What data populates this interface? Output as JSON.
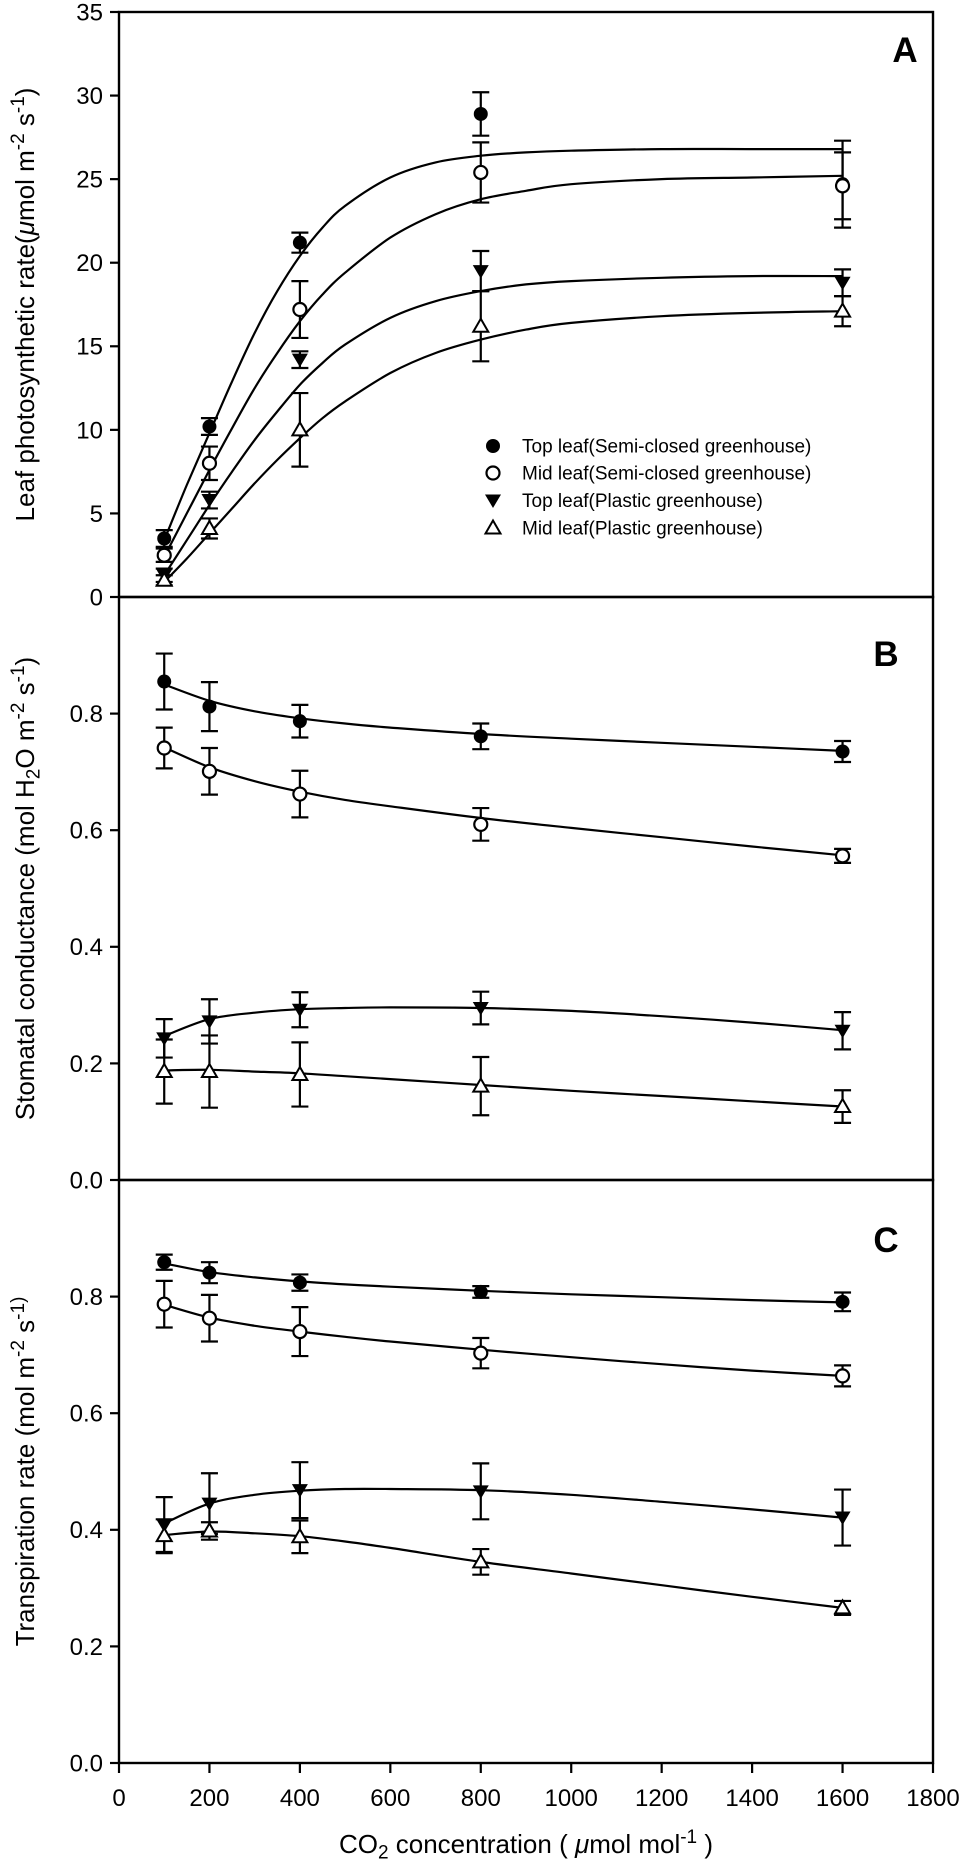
{
  "chart_data": {
    "type": "line",
    "background": "#ffffff",
    "ink_color": "#000000",
    "x": {
      "min": 0,
      "max": 1800,
      "tick_values": [
        0,
        200,
        400,
        600,
        800,
        1000,
        1200,
        1400,
        1600,
        1800
      ],
      "tick_labels": [
        "0",
        "200",
        "400",
        "600",
        "800",
        "1000",
        "1200",
        "1400",
        "1600",
        "1800"
      ],
      "label_parts": [
        {
          "t": "CO"
        },
        {
          "t": "2",
          "sub": true
        },
        {
          "t": " concentration ( "
        },
        {
          "t": "μ",
          "italic": true
        },
        {
          "t": "mol mol"
        },
        {
          "t": "-1",
          "sup": true
        },
        {
          "t": " )"
        }
      ]
    },
    "points_x": [
      100,
      200,
      400,
      800,
      1600
    ],
    "panels": [
      {
        "label": "A",
        "ylim": [
          0,
          35
        ],
        "ytick_values": [
          0,
          5,
          10,
          15,
          20,
          25,
          30,
          35
        ],
        "ytick_labels": [
          "0",
          "5",
          "10",
          "15",
          "20",
          "25",
          "30",
          "35"
        ],
        "ylabel_parts": [
          {
            "t": "Leaf photosynthetic rate("
          },
          {
            "t": "μ",
            "italic": true
          },
          {
            "t": "mol m"
          },
          {
            "t": "-2",
            "sup": true
          },
          {
            "t": " s"
          },
          {
            "t": "-1",
            "sup": true
          },
          {
            "t": ")"
          }
        ],
        "series": [
          {
            "name": "Top leaf(Semi-closed greenhouse)",
            "marker": "circle-filled",
            "values": [
              3.5,
              10.2,
              21.2,
              28.9,
              24.7
            ],
            "errors": [
              0.5,
              0.5,
              0.6,
              1.3,
              2.6
            ],
            "fit": {
              "x": [
                100,
                150,
                200,
                250,
                300,
                350,
                400,
                450,
                500,
                600,
                700,
                800,
                900,
                1000,
                1200,
                1400,
                1600
              ],
              "y": [
                3.4,
                6.7,
                9.8,
                12.9,
                15.8,
                18.3,
                20.4,
                22.1,
                23.4,
                25.1,
                26.0,
                26.4,
                26.6,
                26.7,
                26.8,
                26.8,
                26.8
              ]
            }
          },
          {
            "name": "Mid leaf(Semi-closed greenhouse)",
            "marker": "circle-open",
            "values": [
              2.5,
              8.0,
              17.2,
              25.4,
              24.6
            ],
            "errors": [
              0.4,
              1.0,
              1.7,
              1.8,
              2.0
            ],
            "fit": {
              "x": [
                100,
                150,
                200,
                250,
                300,
                350,
                400,
                450,
                500,
                600,
                700,
                800,
                900,
                1000,
                1200,
                1400,
                1600
              ],
              "y": [
                2.4,
                5.0,
                7.6,
                10.1,
                12.5,
                14.6,
                16.5,
                18.1,
                19.4,
                21.5,
                22.9,
                23.8,
                24.3,
                24.7,
                25.0,
                25.1,
                25.2
              ]
            }
          },
          {
            "name": "Top leaf(Plastic greenhouse)",
            "marker": "triangle-down-filled",
            "values": [
              1.3,
              5.8,
              14.2,
              19.5,
              18.8
            ],
            "errors": [
              0.4,
              0.5,
              0.5,
              1.2,
              0.8
            ],
            "fit": {
              "x": [
                100,
                150,
                200,
                250,
                300,
                350,
                400,
                450,
                500,
                600,
                700,
                800,
                900,
                1000,
                1200,
                1400,
                1600
              ],
              "y": [
                1.3,
                3.4,
                5.5,
                7.5,
                9.4,
                11.1,
                12.7,
                14.0,
                15.1,
                16.7,
                17.7,
                18.3,
                18.7,
                18.9,
                19.1,
                19.2,
                19.2
              ]
            }
          },
          {
            "name": "Mid leaf(Plastic greenhouse)",
            "marker": "triangle-up-open",
            "values": [
              1.0,
              4.1,
              10.0,
              16.2,
              17.1
            ],
            "errors": [
              0.3,
              0.6,
              2.2,
              2.1,
              0.9
            ],
            "fit": {
              "x": [
                100,
                150,
                200,
                250,
                300,
                350,
                400,
                450,
                500,
                600,
                700,
                800,
                900,
                1000,
                1200,
                1400,
                1600
              ],
              "y": [
                0.9,
                2.3,
                3.8,
                5.3,
                6.8,
                8.2,
                9.5,
                10.7,
                11.7,
                13.4,
                14.6,
                15.4,
                16.0,
                16.4,
                16.8,
                17.0,
                17.1
              ]
            }
          }
        ],
        "legend": {
          "items": [
            {
              "marker": "circle-filled",
              "label": "Top leaf(Semi-closed greenhouse)"
            },
            {
              "marker": "circle-open",
              "label": "Mid leaf(Semi-closed greenhouse)"
            },
            {
              "marker": "triangle-down-filled",
              "label": "Top leaf(Plastic greenhouse)"
            },
            {
              "marker": "triangle-up-open",
              "label": "Mid leaf(Plastic greenhouse)"
            }
          ]
        }
      },
      {
        "label": "B",
        "ylim": [
          0,
          1.0
        ],
        "ytick_values": [
          0.0,
          0.2,
          0.4,
          0.6,
          0.8
        ],
        "ytick_labels": [
          "0.0",
          "0.2",
          "0.4",
          "0.6",
          "0.8"
        ],
        "ylabel_parts": [
          {
            "t": "Stomatal conductance (mol H"
          },
          {
            "t": "2",
            "sub": true
          },
          {
            "t": "O m"
          },
          {
            "t": "-2",
            "sup": true
          },
          {
            "t": " s"
          },
          {
            "t": "-1",
            "sup": true
          },
          {
            "t": ")"
          }
        ],
        "series": [
          {
            "name": "Top leaf(Semi-closed greenhouse)",
            "marker": "circle-filled",
            "values": [
              0.855,
              0.812,
              0.787,
              0.761,
              0.735
            ],
            "errors": [
              0.048,
              0.042,
              0.028,
              0.022,
              0.018
            ],
            "fit": {
              "x": [
                100,
                200,
                300,
                400,
                500,
                600,
                800,
                1000,
                1200,
                1400,
                1600
              ],
              "y": [
                0.85,
                0.822,
                0.804,
                0.792,
                0.783,
                0.776,
                0.765,
                0.757,
                0.75,
                0.743,
                0.736
              ]
            }
          },
          {
            "name": "Mid leaf(Semi-closed greenhouse)",
            "marker": "circle-open",
            "values": [
              0.741,
              0.701,
              0.662,
              0.61,
              0.556
            ],
            "errors": [
              0.035,
              0.04,
              0.04,
              0.028,
              0.012
            ],
            "fit": {
              "x": [
                100,
                200,
                300,
                400,
                500,
                600,
                800,
                1000,
                1200,
                1400,
                1600
              ],
              "y": [
                0.742,
                0.708,
                0.684,
                0.666,
                0.652,
                0.641,
                0.621,
                0.604,
                0.588,
                0.572,
                0.557
              ]
            }
          },
          {
            "name": "Top leaf(Plastic greenhouse)",
            "marker": "triangle-down-filled",
            "values": [
              0.243,
              0.272,
              0.292,
              0.295,
              0.256
            ],
            "errors": [
              0.033,
              0.038,
              0.03,
              0.028,
              0.032
            ],
            "fit": {
              "x": [
                100,
                200,
                300,
                400,
                500,
                600,
                800,
                1000,
                1200,
                1400,
                1600
              ],
              "y": [
                0.247,
                0.276,
                0.287,
                0.293,
                0.295,
                0.296,
                0.295,
                0.29,
                0.281,
                0.27,
                0.257
              ]
            }
          },
          {
            "name": "Mid leaf(Plastic greenhouse)",
            "marker": "triangle-up-open",
            "values": [
              0.186,
              0.186,
              0.181,
              0.161,
              0.126
            ],
            "errors": [
              0.055,
              0.062,
              0.055,
              0.05,
              0.028
            ],
            "fit": {
              "x": [
                100,
                200,
                300,
                400,
                500,
                600,
                800,
                1000,
                1200,
                1400,
                1600
              ],
              "y": [
                0.188,
                0.189,
                0.186,
                0.183,
                0.178,
                0.173,
                0.163,
                0.153,
                0.144,
                0.135,
                0.126
              ]
            }
          }
        ]
      },
      {
        "label": "C",
        "ylim": [
          0,
          1.0
        ],
        "ytick_values": [
          0.0,
          0.2,
          0.4,
          0.6,
          0.8
        ],
        "ytick_labels": [
          "0.0",
          "0.2",
          "0.4",
          "0.6",
          "0.8"
        ],
        "ylabel_parts": [
          {
            "t": "Transpiration rate (mol  m"
          },
          {
            "t": "-2",
            "sup": true
          },
          {
            "t": " s"
          },
          {
            "t": "-1)",
            "sup": true
          }
        ],
        "series": [
          {
            "name": "Top leaf(Semi-closed greenhouse)",
            "marker": "circle-filled",
            "values": [
              0.859,
              0.841,
              0.824,
              0.808,
              0.791
            ],
            "errors": [
              0.013,
              0.018,
              0.014,
              0.01,
              0.016
            ],
            "fit": {
              "x": [
                100,
                200,
                300,
                400,
                500,
                600,
                800,
                1000,
                1200,
                1400,
                1600
              ],
              "y": [
                0.857,
                0.842,
                0.833,
                0.826,
                0.821,
                0.817,
                0.81,
                0.804,
                0.799,
                0.794,
                0.79
              ]
            }
          },
          {
            "name": "Mid leaf(Semi-closed greenhouse)",
            "marker": "circle-open",
            "values": [
              0.787,
              0.763,
              0.74,
              0.703,
              0.664
            ],
            "errors": [
              0.04,
              0.04,
              0.042,
              0.026,
              0.018
            ],
            "fit": {
              "x": [
                100,
                200,
                300,
                400,
                500,
                600,
                800,
                1000,
                1200,
                1400,
                1600
              ],
              "y": [
                0.786,
                0.764,
                0.75,
                0.74,
                0.731,
                0.723,
                0.709,
                0.696,
                0.684,
                0.673,
                0.664
              ]
            }
          },
          {
            "name": "Top leaf(Plastic greenhouse)",
            "marker": "triangle-down-filled",
            "values": [
              0.408,
              0.445,
              0.468,
              0.466,
              0.421
            ],
            "errors": [
              0.048,
              0.052,
              0.048,
              0.048,
              0.048
            ],
            "fit": {
              "x": [
                100,
                200,
                300,
                400,
                500,
                600,
                800,
                1000,
                1200,
                1400,
                1600
              ],
              "y": [
                0.411,
                0.445,
                0.46,
                0.467,
                0.47,
                0.47,
                0.468,
                0.46,
                0.448,
                0.435,
                0.421
              ]
            }
          },
          {
            "name": "Mid leaf(Plastic greenhouse)",
            "marker": "triangle-up-open",
            "values": [
              0.39,
              0.398,
              0.388,
              0.345,
              0.266
            ],
            "errors": [
              0.028,
              0.015,
              0.028,
              0.022,
              0.012
            ],
            "fit": {
              "x": [
                100,
                200,
                300,
                400,
                500,
                600,
                800,
                1000,
                1200,
                1400,
                1600
              ],
              "y": [
                0.391,
                0.397,
                0.394,
                0.389,
                0.38,
                0.369,
                0.345,
                0.325,
                0.305,
                0.285,
                0.266
              ]
            }
          }
        ]
      }
    ]
  }
}
